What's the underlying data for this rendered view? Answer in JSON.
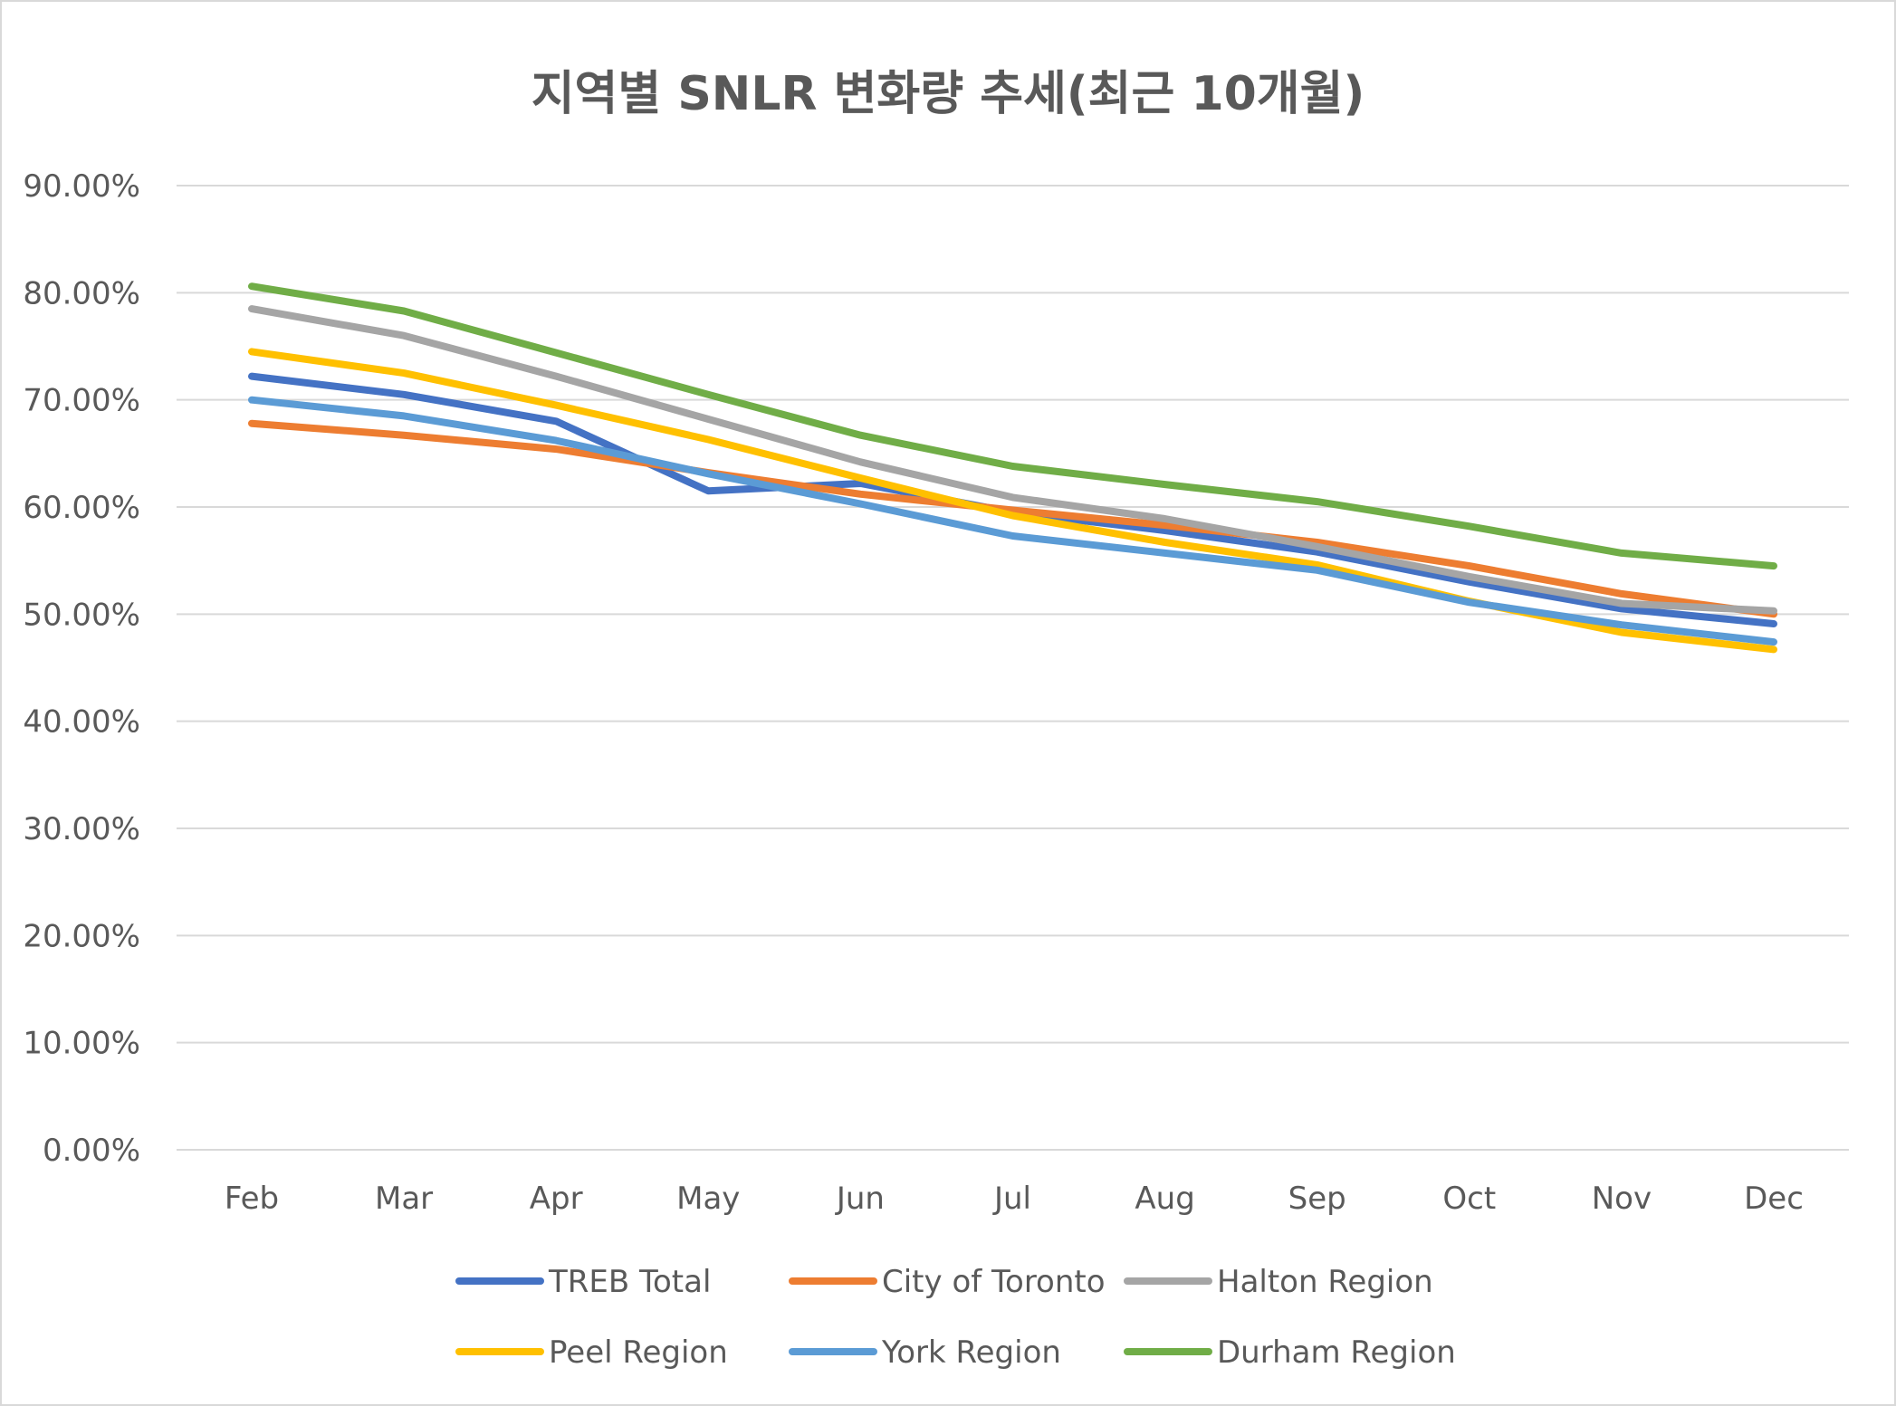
{
  "chart_data": {
    "type": "line",
    "title": "지역별 SNLR 변화량 추세(최근 10개월)",
    "categories": [
      "Feb",
      "Mar",
      "Apr",
      "May",
      "Jun",
      "Jul",
      "Aug",
      "Sep",
      "Oct",
      "Nov",
      "Dec"
    ],
    "yticks": [
      "0.00%",
      "10.00%",
      "20.00%",
      "30.00%",
      "40.00%",
      "50.00%",
      "60.00%",
      "70.00%",
      "80.00%",
      "90.00%"
    ],
    "ylim": [
      0,
      90
    ],
    "y_unit": "percent",
    "grid": true,
    "legend_position": "bottom",
    "series": [
      {
        "name": "TREB Total",
        "color": "#4472c4",
        "values": [
          72.2,
          70.5,
          68.0,
          61.5,
          62.2,
          59.5,
          57.8,
          55.8,
          53.0,
          50.5,
          49.1
        ]
      },
      {
        "name": "City of Toronto",
        "color": "#ed7d31",
        "values": [
          67.8,
          66.7,
          65.4,
          63.2,
          61.2,
          59.7,
          58.3,
          56.7,
          54.5,
          51.9,
          50.0
        ]
      },
      {
        "name": "Halton Region",
        "color": "#a5a5a5",
        "values": [
          78.5,
          76.0,
          72.2,
          68.2,
          64.2,
          60.9,
          58.9,
          56.3,
          53.5,
          51.0,
          50.3
        ]
      },
      {
        "name": "Peel Region",
        "color": "#ffc000",
        "values": [
          74.5,
          72.5,
          69.5,
          66.3,
          62.7,
          59.2,
          56.7,
          54.6,
          51.2,
          48.3,
          46.7
        ]
      },
      {
        "name": "York Region",
        "color": "#5b9bd5",
        "values": [
          70.0,
          68.5,
          66.2,
          63.1,
          60.3,
          57.3,
          55.7,
          54.1,
          51.1,
          49.0,
          47.4
        ]
      },
      {
        "name": "Durham Region",
        "color": "#70ad47",
        "values": [
          80.6,
          78.3,
          74.4,
          70.5,
          66.7,
          63.8,
          62.1,
          60.5,
          58.2,
          55.7,
          54.5
        ]
      }
    ]
  }
}
